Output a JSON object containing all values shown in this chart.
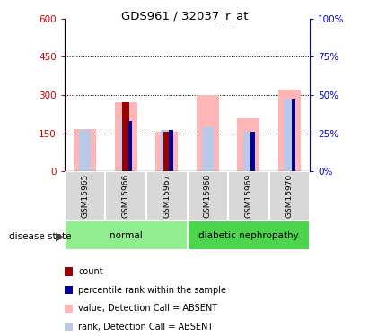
{
  "title": "GDS961 / 32037_r_at",
  "samples": [
    "GSM15965",
    "GSM15966",
    "GSM15967",
    "GSM15968",
    "GSM15969",
    "GSM15970"
  ],
  "count_values": [
    0,
    270,
    155,
    0,
    0,
    0
  ],
  "percentile_pct": [
    0,
    33,
    27,
    0,
    26,
    47
  ],
  "absent_value_bars": [
    165,
    270,
    155,
    300,
    210,
    320
  ],
  "absent_rank_pct": [
    27,
    33,
    27,
    29,
    26,
    47
  ],
  "ylim_left": [
    0,
    600
  ],
  "ylim_right": [
    0,
    100
  ],
  "yticks_left": [
    0,
    150,
    300,
    450,
    600
  ],
  "yticks_right": [
    0,
    25,
    50,
    75,
    100
  ],
  "ytick_labels_left": [
    "0",
    "150",
    "300",
    "450",
    "600"
  ],
  "ytick_labels_right": [
    "0%",
    "25%",
    "50%",
    "75%",
    "100%"
  ],
  "left_axis_color": "#cc0000",
  "right_axis_color": "#0000cc",
  "absent_value_color": "#FFB6B6",
  "absent_rank_color": "#B8C8E8",
  "count_color": "#990000",
  "percentile_color": "#000099",
  "bg_color": "#ffffff",
  "group_normal_color": "#90EE90",
  "group_dn_color": "#4CD44C",
  "sample_cell_color": "#D8D8D8",
  "legend_items": [
    {
      "label": "count",
      "color": "#990000"
    },
    {
      "label": "percentile rank within the sample",
      "color": "#000099"
    },
    {
      "label": "value, Detection Call = ABSENT",
      "color": "#FFB6B6"
    },
    {
      "label": "rank, Detection Call = ABSENT",
      "color": "#B8C8E8"
    }
  ]
}
